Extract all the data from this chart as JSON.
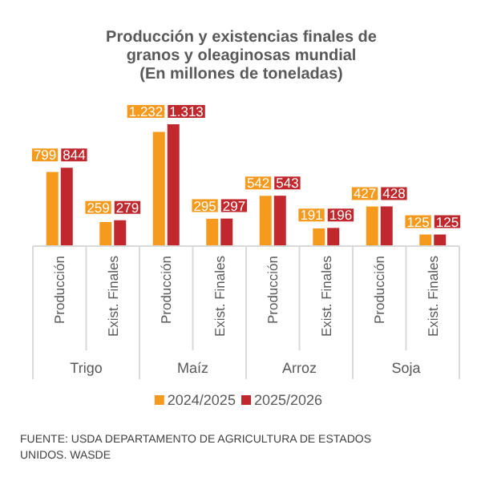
{
  "chart_data": {
    "type": "bar",
    "title": "Producción y existencias finales de granos y oleaginosas mundial",
    "subtitle": "(En millones de toneladas)",
    "categories": [
      "Producción",
      "Exist. Finales",
      "Producción",
      "Exist. Finales",
      "Producción",
      "Exist. Finales",
      "Producción",
      "Exist. Finales"
    ],
    "series": [
      {
        "name": "2024/2025",
        "color": "#f59a1c",
        "values": [
          799,
          259,
          1232,
          295,
          542,
          191,
          427,
          125
        ],
        "value_labels": [
          "799",
          "259",
          "1.232",
          "295",
          "542",
          "191",
          "427",
          "125"
        ]
      },
      {
        "name": "2025/2026",
        "color": "#c0282d",
        "values": [
          844,
          279,
          1313,
          297,
          543,
          196,
          428,
          125
        ],
        "value_labels": [
          "844",
          "279",
          "1.313",
          "297",
          "543",
          "196",
          "428",
          "125"
        ]
      }
    ],
    "annotations": [
      "Trigo",
      "Maíz",
      "Arroz",
      "Soja",
      "FUENTE: USDA DEPARTAMENTO DE AGRICULTURA DE ESTADOS UNIDOS. WASDE"
    ],
    "legend": "bottom"
  }
}
